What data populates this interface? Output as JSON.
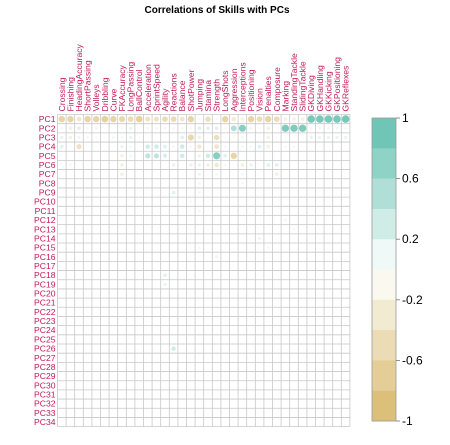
{
  "chart_data": {
    "type": "heatmap",
    "title": "Correlations of Skills with PCs",
    "columns": [
      "Crossing",
      "Finishing",
      "HeadingAccuracy",
      "ShortPassing",
      "Volleys",
      "Dribbling",
      "Curve",
      "FKAccuracy",
      "LongPassing",
      "BallControl",
      "Acceleration",
      "SprintSpeed",
      "Agility",
      "Reactions",
      "Balance",
      "ShotPower",
      "Jumping",
      "Stamina",
      "Strength",
      "LongShots",
      "Aggression",
      "Interceptions",
      "Positioning",
      "Vision",
      "Penalties",
      "Composure",
      "Marking",
      "StandingTackle",
      "SlidingTackle",
      "GKDiving",
      "GKHandling",
      "GKKicking",
      "GKPositioning",
      "GKReflexes"
    ],
    "rows": [
      "PC1",
      "PC2",
      "PC3",
      "PC4",
      "PC5",
      "PC6",
      "PC7",
      "PC8",
      "PC9",
      "PC10",
      "PC11",
      "PC12",
      "PC13",
      "PC14",
      "PC15",
      "PC16",
      "PC17",
      "PC18",
      "PC19",
      "PC20",
      "PC21",
      "PC22",
      "PC23",
      "PC24",
      "PC25",
      "PC26",
      "PC27",
      "PC28",
      "PC29",
      "PC30",
      "PC31",
      "PC32",
      "PC33",
      "PC34"
    ],
    "marker": "circle",
    "color_scale": {
      "min": -1,
      "max": 1,
      "ticks": [
        "-1",
        "-0.6",
        "-0.2",
        "0.2",
        "0.6",
        "1"
      ],
      "negative_color": "#d8b86a",
      "positive_color": "#5fbfae"
    },
    "cells": [
      [
        0,
        0,
        -0.6
      ],
      [
        1,
        0,
        -0.6
      ],
      [
        2,
        0,
        -0.35
      ],
      [
        3,
        0,
        -0.6
      ],
      [
        4,
        0,
        -0.6
      ],
      [
        5,
        0,
        -0.65
      ],
      [
        6,
        0,
        -0.6
      ],
      [
        7,
        0,
        -0.55
      ],
      [
        8,
        0,
        -0.5
      ],
      [
        9,
        0,
        -0.65
      ],
      [
        10,
        0,
        -0.4
      ],
      [
        11,
        0,
        -0.4
      ],
      [
        12,
        0,
        -0.5
      ],
      [
        13,
        0,
        -0.5
      ],
      [
        14,
        0,
        -0.35
      ],
      [
        15,
        0,
        -0.6
      ],
      [
        16,
        0,
        -0.1
      ],
      [
        17,
        0,
        -0.45
      ],
      [
        18,
        0,
        -0.1
      ],
      [
        19,
        0,
        -0.6
      ],
      [
        20,
        0,
        -0.3
      ],
      [
        21,
        0,
        -0.2
      ],
      [
        22,
        0,
        -0.6
      ],
      [
        23,
        0,
        -0.5
      ],
      [
        24,
        0,
        -0.6
      ],
      [
        25,
        0,
        -0.5
      ],
      [
        26,
        0,
        -0.2
      ],
      [
        27,
        0,
        -0.2
      ],
      [
        28,
        0,
        -0.2
      ],
      [
        29,
        0,
        0.85
      ],
      [
        30,
        0,
        0.85
      ],
      [
        31,
        0,
        0.85
      ],
      [
        32,
        0,
        0.85
      ],
      [
        33,
        0,
        0.85
      ],
      [
        0,
        1,
        0.1
      ],
      [
        1,
        1,
        -0.2
      ],
      [
        2,
        1,
        0.2
      ],
      [
        3,
        1,
        0.1
      ],
      [
        4,
        1,
        -0.15
      ],
      [
        5,
        1,
        0.05
      ],
      [
        6,
        1,
        0.05
      ],
      [
        7,
        1,
        0.1
      ],
      [
        8,
        1,
        0.15
      ],
      [
        9,
        1,
        0.05
      ],
      [
        10,
        1,
        0.1
      ],
      [
        11,
        1,
        0.1
      ],
      [
        12,
        1,
        0.1
      ],
      [
        13,
        1,
        0.1
      ],
      [
        14,
        1,
        0.1
      ],
      [
        15,
        1,
        -0.1
      ],
      [
        16,
        1,
        0.2
      ],
      [
        17,
        1,
        0.2
      ],
      [
        18,
        1,
        0.2
      ],
      [
        19,
        1,
        -0.1
      ],
      [
        20,
        1,
        0.5
      ],
      [
        21,
        1,
        0.75
      ],
      [
        22,
        1,
        -0.15
      ],
      [
        23,
        1,
        -0.05
      ],
      [
        24,
        1,
        -0.2
      ],
      [
        25,
        1,
        0.05
      ],
      [
        26,
        1,
        0.8
      ],
      [
        27,
        1,
        0.8
      ],
      [
        28,
        1,
        0.8
      ],
      [
        29,
        1,
        0.1
      ],
      [
        30,
        1,
        0.1
      ],
      [
        31,
        1,
        0.1
      ],
      [
        32,
        1,
        0.1
      ],
      [
        33,
        1,
        0.1
      ],
      [
        0,
        2,
        0.15
      ],
      [
        1,
        2,
        -0.2
      ],
      [
        2,
        2,
        -0.15
      ],
      [
        3,
        2,
        0.1
      ],
      [
        4,
        2,
        -0.1
      ],
      [
        5,
        2,
        0.05
      ],
      [
        6,
        2,
        0.1
      ],
      [
        7,
        2,
        0.1
      ],
      [
        8,
        2,
        0.15
      ],
      [
        9,
        2,
        0.05
      ],
      [
        10,
        2,
        0.05
      ],
      [
        11,
        2,
        -0.05
      ],
      [
        12,
        2,
        0.05
      ],
      [
        13,
        2,
        -0.05
      ],
      [
        14,
        2,
        0.2
      ],
      [
        15,
        2,
        -0.55
      ],
      [
        16,
        2,
        -0.2
      ],
      [
        17,
        2,
        -0.05
      ],
      [
        18,
        2,
        -0.45
      ],
      [
        19,
        2,
        -0.05
      ],
      [
        20,
        2,
        -0.1
      ],
      [
        21,
        2,
        0.1
      ],
      [
        22,
        2,
        0.05
      ],
      [
        23,
        2,
        0.05
      ],
      [
        24,
        2,
        -0.2
      ],
      [
        25,
        2,
        0.05
      ],
      [
        26,
        2,
        0.05
      ],
      [
        27,
        2,
        0.05
      ],
      [
        28,
        2,
        0.05
      ],
      [
        29,
        2,
        0.15
      ],
      [
        30,
        2,
        0.15
      ],
      [
        31,
        2,
        0.15
      ],
      [
        32,
        2,
        0.15
      ],
      [
        33,
        2,
        0.15
      ],
      [
        0,
        3,
        0.2
      ],
      [
        2,
        3,
        -0.4
      ],
      [
        7,
        3,
        0.15
      ],
      [
        8,
        3,
        0.1
      ],
      [
        10,
        3,
        0.3
      ],
      [
        11,
        3,
        0.3
      ],
      [
        12,
        3,
        0.2
      ],
      [
        13,
        3,
        0.1
      ],
      [
        14,
        3,
        0.3
      ],
      [
        15,
        3,
        0.1
      ],
      [
        16,
        3,
        -0.3
      ],
      [
        18,
        3,
        -0.35
      ],
      [
        19,
        3,
        0.1
      ],
      [
        21,
        3,
        0.1
      ],
      [
        22,
        3,
        0.1
      ],
      [
        23,
        3,
        0.2
      ],
      [
        24,
        3,
        -0.2
      ],
      [
        26,
        3,
        0.1
      ],
      [
        27,
        3,
        0.1
      ],
      [
        7,
        4,
        -0.2
      ],
      [
        8,
        4,
        0.1
      ],
      [
        10,
        4,
        0.4
      ],
      [
        11,
        4,
        0.4
      ],
      [
        12,
        4,
        0.25
      ],
      [
        14,
        4,
        0.3
      ],
      [
        16,
        4,
        0.15
      ],
      [
        17,
        4,
        0.3
      ],
      [
        18,
        4,
        0.75
      ],
      [
        19,
        4,
        0.2
      ],
      [
        20,
        4,
        -0.6
      ],
      [
        1,
        5,
        0.1
      ],
      [
        7,
        5,
        -0.2
      ],
      [
        13,
        5,
        0.15
      ],
      [
        15,
        5,
        -0.2
      ],
      [
        16,
        5,
        0.15
      ],
      [
        17,
        5,
        -0.2
      ],
      [
        18,
        5,
        -0.3
      ],
      [
        19,
        5,
        0.1
      ],
      [
        21,
        5,
        -0.2
      ],
      [
        22,
        5,
        0.15
      ],
      [
        24,
        5,
        0.2
      ],
      [
        25,
        5,
        0.2
      ],
      [
        7,
        6,
        -0.2
      ],
      [
        16,
        6,
        0.15
      ],
      [
        18,
        6,
        0.1
      ],
      [
        21,
        6,
        0.1
      ],
      [
        25,
        6,
        -0.2
      ],
      [
        16,
        7,
        0.1
      ],
      [
        21,
        7,
        0.1
      ],
      [
        13,
        8,
        0.2
      ],
      [
        16,
        8,
        0.1
      ],
      [
        15,
        9,
        -0.1
      ],
      [
        16,
        10,
        0.1
      ],
      [
        15,
        11,
        0.05
      ],
      [
        26,
        11,
        0.1
      ],
      [
        27,
        12,
        0.1
      ],
      [
        23,
        13,
        -0.15
      ],
      [
        16,
        14,
        -0.1
      ],
      [
        24,
        14,
        0.1
      ],
      [
        18,
        15,
        -0.15
      ],
      [
        12,
        17,
        0.2
      ],
      [
        12,
        18,
        0.15
      ],
      [
        13,
        25,
        0.3
      ]
    ]
  }
}
